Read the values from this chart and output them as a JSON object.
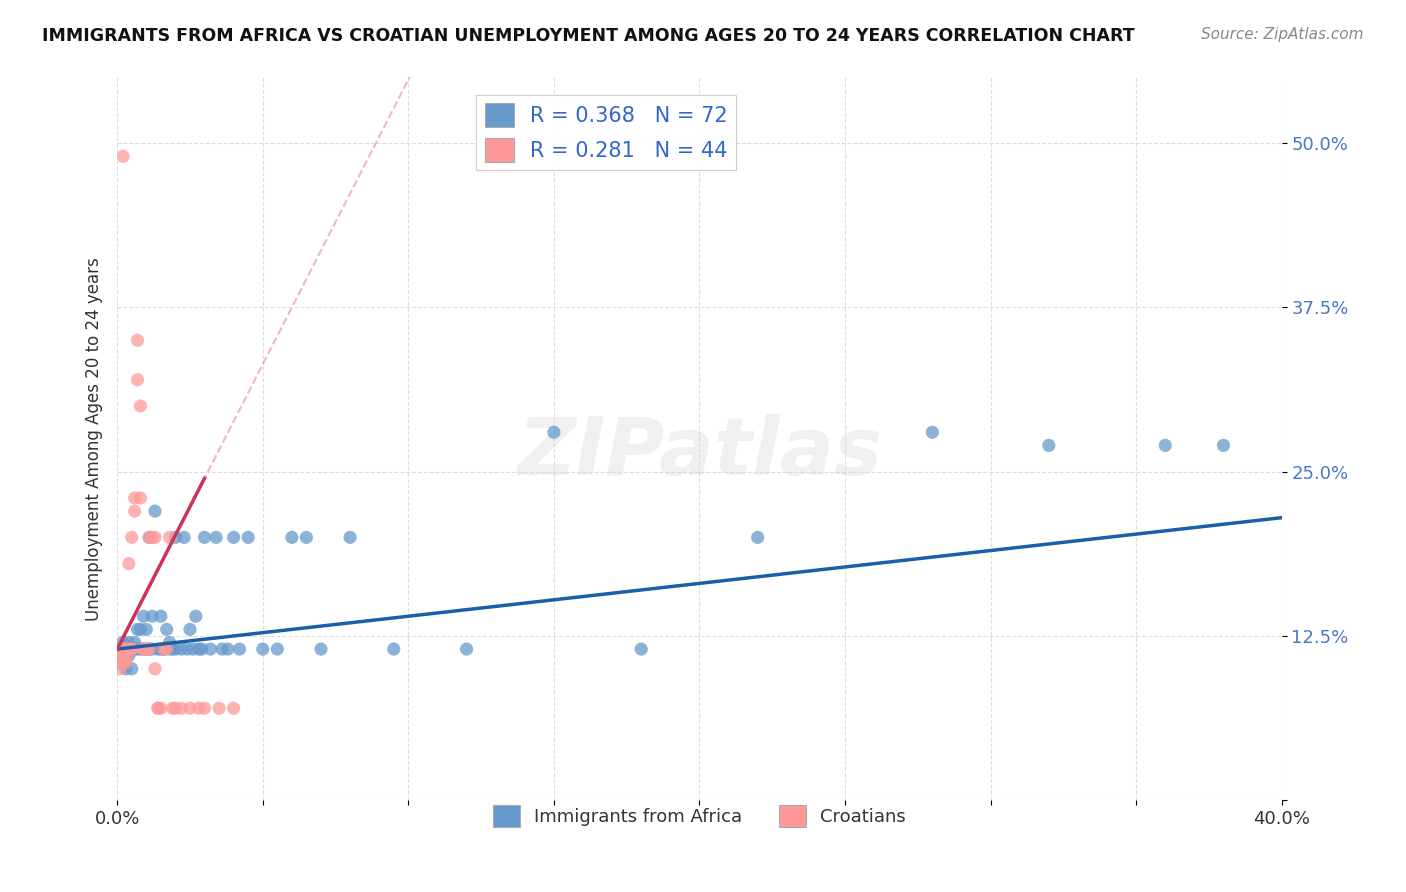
{
  "title": "IMMIGRANTS FROM AFRICA VS CROATIAN UNEMPLOYMENT AMONG AGES 20 TO 24 YEARS CORRELATION CHART",
  "source": "Source: ZipAtlas.com",
  "ylabel": "Unemployment Among Ages 20 to 24 years",
  "xlim": [
    0.0,
    0.4
  ],
  "ylim": [
    0.0,
    0.55
  ],
  "legend1_label": "Immigrants from Africa",
  "legend2_label": "Croatians",
  "r1": 0.368,
  "n1": 72,
  "r2": 0.281,
  "n2": 44,
  "blue_color": "#6699CC",
  "pink_color": "#FF9999",
  "blue_line_color": "#1a5fa8",
  "pink_line_color": "#cc3355",
  "watermark": "ZIPatlas",
  "blue_scatter_x": [
    0.001,
    0.001,
    0.001,
    0.002,
    0.002,
    0.002,
    0.003,
    0.003,
    0.003,
    0.004,
    0.004,
    0.004,
    0.005,
    0.005,
    0.005,
    0.006,
    0.006,
    0.007,
    0.007,
    0.008,
    0.008,
    0.009,
    0.009,
    0.01,
    0.01,
    0.011,
    0.011,
    0.012,
    0.012,
    0.013,
    0.014,
    0.015,
    0.015,
    0.016,
    0.016,
    0.017,
    0.018,
    0.018,
    0.019,
    0.02,
    0.02,
    0.022,
    0.023,
    0.024,
    0.025,
    0.026,
    0.027,
    0.028,
    0.029,
    0.03,
    0.032,
    0.034,
    0.036,
    0.038,
    0.04,
    0.042,
    0.045,
    0.05,
    0.055,
    0.06,
    0.065,
    0.07,
    0.08,
    0.095,
    0.12,
    0.15,
    0.18,
    0.22,
    0.28,
    0.32,
    0.36,
    0.38
  ],
  "blue_scatter_y": [
    0.115,
    0.11,
    0.105,
    0.115,
    0.11,
    0.12,
    0.115,
    0.1,
    0.11,
    0.115,
    0.11,
    0.12,
    0.115,
    0.1,
    0.115,
    0.115,
    0.12,
    0.13,
    0.115,
    0.115,
    0.13,
    0.14,
    0.115,
    0.115,
    0.13,
    0.115,
    0.2,
    0.115,
    0.14,
    0.22,
    0.115,
    0.115,
    0.14,
    0.115,
    0.115,
    0.13,
    0.115,
    0.12,
    0.115,
    0.115,
    0.2,
    0.115,
    0.2,
    0.115,
    0.13,
    0.115,
    0.14,
    0.115,
    0.115,
    0.2,
    0.115,
    0.2,
    0.115,
    0.115,
    0.2,
    0.115,
    0.2,
    0.115,
    0.115,
    0.2,
    0.2,
    0.115,
    0.2,
    0.115,
    0.115,
    0.28,
    0.115,
    0.2,
    0.28,
    0.27,
    0.27,
    0.27
  ],
  "pink_scatter_x": [
    0.001,
    0.001,
    0.001,
    0.002,
    0.002,
    0.002,
    0.002,
    0.003,
    0.003,
    0.003,
    0.004,
    0.004,
    0.005,
    0.005,
    0.005,
    0.006,
    0.006,
    0.007,
    0.007,
    0.008,
    0.008,
    0.009,
    0.009,
    0.01,
    0.01,
    0.011,
    0.011,
    0.012,
    0.013,
    0.013,
    0.014,
    0.014,
    0.015,
    0.016,
    0.017,
    0.018,
    0.019,
    0.02,
    0.022,
    0.025,
    0.028,
    0.03,
    0.035,
    0.04
  ],
  "pink_scatter_y": [
    0.115,
    0.11,
    0.1,
    0.115,
    0.11,
    0.105,
    0.49,
    0.115,
    0.11,
    0.105,
    0.18,
    0.115,
    0.2,
    0.115,
    0.115,
    0.23,
    0.22,
    0.35,
    0.32,
    0.23,
    0.3,
    0.115,
    0.115,
    0.115,
    0.115,
    0.115,
    0.2,
    0.2,
    0.1,
    0.2,
    0.07,
    0.07,
    0.07,
    0.115,
    0.115,
    0.2,
    0.07,
    0.07,
    0.07,
    0.07,
    0.07,
    0.07,
    0.07,
    0.07
  ]
}
